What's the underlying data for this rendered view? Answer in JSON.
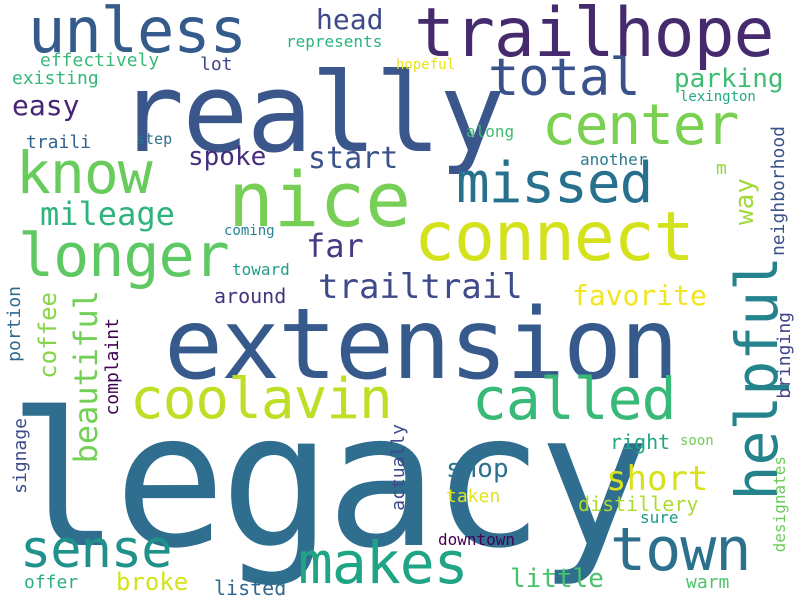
{
  "words": {
    "legacy": {
      "text": "legacy",
      "color": "#2f6e8e"
    },
    "extension": {
      "text": "extension",
      "color": "#375a8c"
    },
    "really": {
      "text": "really",
      "color": "#3a568b"
    },
    "trailhope": {
      "text": "trailhope",
      "color": "#462a6e"
    },
    "unless": {
      "text": "unless",
      "color": "#355b8c"
    },
    "nice": {
      "text": "nice",
      "color": "#77d055"
    },
    "connect": {
      "text": "connect",
      "color": "#d3e21b"
    },
    "longer": {
      "text": "longer",
      "color": "#5ec962"
    },
    "know": {
      "text": "know",
      "color": "#67cc5c"
    },
    "missed": {
      "text": "missed",
      "color": "#27718e"
    },
    "total": {
      "text": "total",
      "color": "#3a528b"
    },
    "center": {
      "text": "center",
      "color": "#7ad151"
    },
    "helpful": {
      "text": "helpful",
      "color": "#25838e"
    },
    "coolavin": {
      "text": "coolavin",
      "color": "#bddf26"
    },
    "called": {
      "text": "called",
      "color": "#38b977"
    },
    "town": {
      "text": "town",
      "color": "#2d708e"
    },
    "makes": {
      "text": "makes",
      "color": "#20a486"
    },
    "sense": {
      "text": "sense",
      "color": "#21918c"
    },
    "trailtrail": {
      "text": "trailtrail",
      "color": "#3e4a89"
    },
    "mileage": {
      "text": "mileage",
      "color": "#2eb37c"
    },
    "beautiful": {
      "text": "beautiful",
      "color": "#73d056"
    },
    "coffee": {
      "text": "coffee",
      "color": "#86d549"
    },
    "far": {
      "text": "far",
      "color": "#443983"
    },
    "start": {
      "text": "start",
      "color": "#3b528b"
    },
    "spoke": {
      "text": "spoke",
      "color": "#472d7b"
    },
    "head": {
      "text": "head",
      "color": "#3e4989"
    },
    "easy": {
      "text": "easy",
      "color": "#482475"
    },
    "effectively": {
      "text": "effectively",
      "color": "#3aba76"
    },
    "existing": {
      "text": "existing",
      "color": "#35b779"
    },
    "lot": {
      "text": "lot",
      "color": "#404688"
    },
    "represents": {
      "text": "represents",
      "color": "#2db27d"
    },
    "parking": {
      "text": "parking",
      "color": "#3fbc73"
    },
    "hopeful": {
      "text": "hopeful",
      "color": "#e7e419"
    },
    "lexington": {
      "text": "lexington",
      "color": "#22a884"
    },
    "traili": {
      "text": "traili",
      "color": "#33638d"
    },
    "step": {
      "text": "step",
      "color": "#2c728e"
    },
    "along": {
      "text": "along",
      "color": "#3fbc73"
    },
    "another": {
      "text": "another",
      "color": "#2a788e"
    },
    "m": {
      "text": "m",
      "color": "#8fd744"
    },
    "way": {
      "text": "way",
      "color": "#a0da39"
    },
    "neighborhood": {
      "text": "neighborhood",
      "color": "#3b528b"
    },
    "coming": {
      "text": "coming",
      "color": "#26828e"
    },
    "toward": {
      "text": "toward",
      "color": "#1f9e89"
    },
    "around": {
      "text": "around",
      "color": "#46337f"
    },
    "favorite": {
      "text": "favorite",
      "color": "#f1e51d"
    },
    "portion": {
      "text": "portion",
      "color": "#31688e"
    },
    "complaint": {
      "text": "complaint",
      "color": "#440154"
    },
    "bringing": {
      "text": "bringing",
      "color": "#414487"
    },
    "shop": {
      "text": "shop",
      "color": "#2c718e"
    },
    "short": {
      "text": "short",
      "color": "#d8e219"
    },
    "signage": {
      "text": "signage",
      "color": "#3e4c8a"
    },
    "actually": {
      "text": "actually",
      "color": "#3e4a89"
    },
    "right": {
      "text": "right",
      "color": "#22a785"
    },
    "soon": {
      "text": "soon",
      "color": "#6ece58"
    },
    "designates": {
      "text": "designates",
      "color": "#6ccd5a"
    },
    "taken": {
      "text": "taken",
      "color": "#e2e418"
    },
    "distillery": {
      "text": "distillery",
      "color": "#addc30"
    },
    "sure": {
      "text": "sure",
      "color": "#1f988b"
    },
    "downtown": {
      "text": "downtown",
      "color": "#440154"
    },
    "little": {
      "text": "little",
      "color": "#4ac16d"
    },
    "offer": {
      "text": "offer",
      "color": "#2ab07f"
    },
    "broke": {
      "text": "broke",
      "color": "#d5e21a"
    },
    "listed": {
      "text": "listed",
      "color": "#31688e"
    },
    "warm": {
      "text": "warm",
      "color": "#50c46a"
    }
  }
}
